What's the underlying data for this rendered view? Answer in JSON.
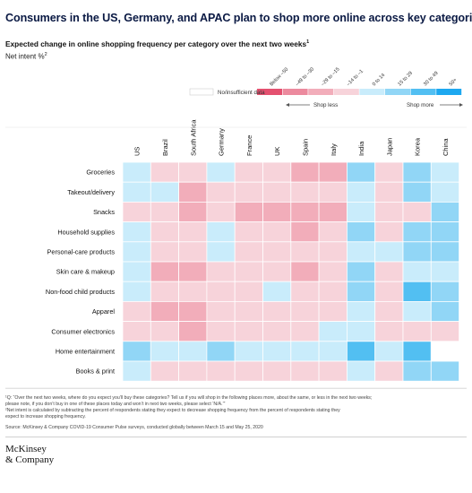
{
  "header": {
    "title": "Consumers in the US, Germany, and APAC plan to shop more online across key categories.",
    "subtitle": "Expected change in online shopping frequency per category over the next two weeks",
    "subtitle_sup": "1",
    "unit": "Net intent %",
    "unit_sup": "2"
  },
  "chart_data": {
    "type": "heatmap",
    "title": "Expected change in online shopping frequency per category over the next two weeks",
    "columns": [
      "US",
      "Brazil",
      "South Africa",
      "Germany",
      "France",
      "UK",
      "Spain",
      "Italy",
      "India",
      "Japan",
      "Korea",
      "China"
    ],
    "rows": [
      "Groceries",
      "Takeout/delivery",
      "Snacks",
      "Household supplies",
      "Personal-care products",
      "Skin care & makeup",
      "Non-food child products",
      "Apparel",
      "Consumer electronics",
      "Home entertainment",
      "Books & print"
    ],
    "legend": {
      "bins": [
        {
          "label": "Below –50",
          "color": "#e4506f"
        },
        {
          "label": "–49 to –30",
          "color": "#ec8a9e"
        },
        {
          "label": "–29 to –15",
          "color": "#f2adba"
        },
        {
          "label": "–14 to –1",
          "color": "#f7d3da"
        },
        {
          "label": "0 to 14",
          "color": "#c9ecfb"
        },
        {
          "label": "15 to 29",
          "color": "#91d6f6"
        },
        {
          "label": "30 to 49",
          "color": "#52bff2"
        },
        {
          "label": "50+",
          "color": "#1da8f0"
        }
      ],
      "no_data": {
        "label": "No/insufficient data",
        "color": "#ffffff"
      },
      "shop_less": "Shop less",
      "shop_more": "Shop more"
    },
    "cells": [
      [
        4,
        3,
        3,
        4,
        3,
        3,
        2,
        2,
        5,
        3,
        5,
        4
      ],
      [
        4,
        4,
        2,
        3,
        3,
        3,
        3,
        3,
        4,
        3,
        5,
        4
      ],
      [
        3,
        3,
        2,
        3,
        2,
        2,
        2,
        2,
        4,
        3,
        3,
        5
      ],
      [
        4,
        3,
        3,
        4,
        3,
        3,
        2,
        3,
        5,
        3,
        5,
        5
      ],
      [
        4,
        3,
        3,
        4,
        3,
        3,
        3,
        3,
        4,
        4,
        5,
        5
      ],
      [
        4,
        2,
        2,
        3,
        3,
        3,
        2,
        3,
        5,
        3,
        4,
        4
      ],
      [
        4,
        3,
        3,
        3,
        3,
        4,
        3,
        3,
        5,
        3,
        6,
        5
      ],
      [
        3,
        2,
        2,
        3,
        3,
        3,
        3,
        3,
        4,
        3,
        4,
        5
      ],
      [
        3,
        3,
        2,
        3,
        3,
        3,
        3,
        4,
        4,
        3,
        3,
        3
      ],
      [
        5,
        4,
        4,
        5,
        4,
        4,
        4,
        4,
        6,
        4,
        6,
        -1
      ],
      [
        4,
        3,
        3,
        3,
        3,
        3,
        3,
        3,
        4,
        3,
        5,
        5
      ]
    ]
  },
  "footnotes": {
    "note1": "¹Q: “Over the next two weeks, where do you expect you’ll buy these categories? Tell us if you will shop in the following places more, about the same, or less in the next two weeks;",
    "note1b": "please note, if you don’t buy in one of these places today and won’t in next two weeks, please select ‘N/A.’”",
    "note2": "²Net intent is calculated by subtracting the percent of respondents stating they expect to decrease shopping frequency from the percent of respondents stating they",
    "note2b": "expect to increase shopping frequency.",
    "source": "Source: McKinsey & Company COVID-19 Consumer Pulse surveys, conducted globally between March 15 and May 25, 2020"
  },
  "logo": {
    "line1": "McKinsey",
    "line2": "& Company"
  }
}
